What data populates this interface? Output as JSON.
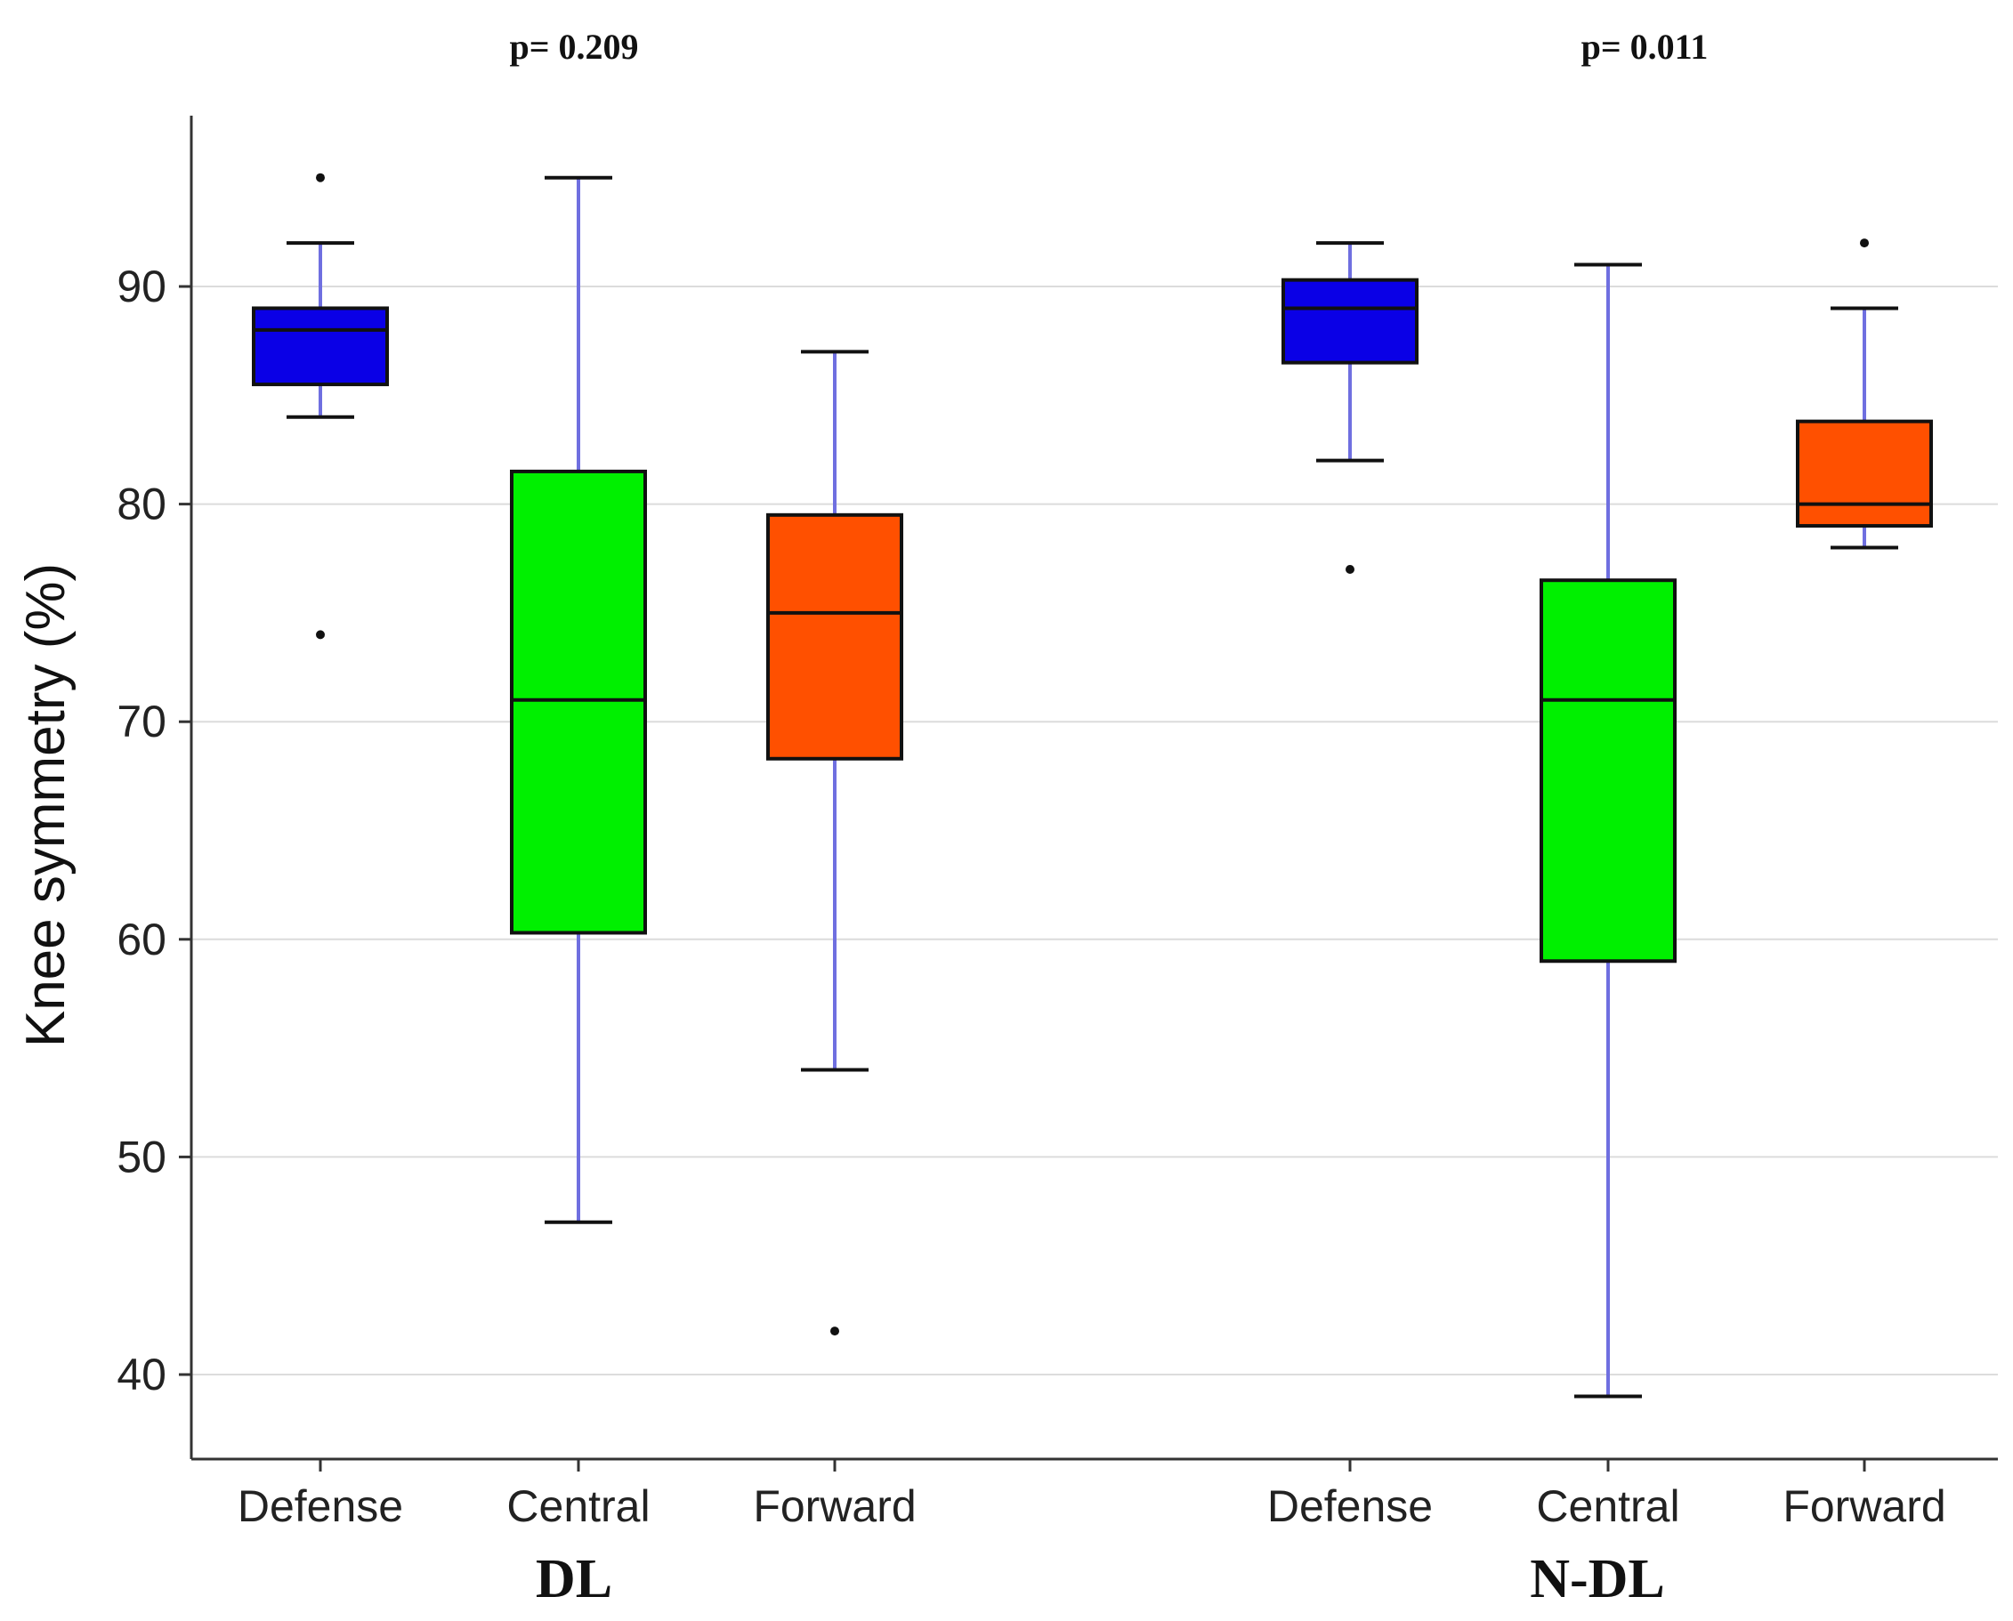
{
  "chart_data": {
    "type": "box",
    "title": "",
    "xlabel": "",
    "ylabel": "Knee symmetry (%)",
    "ylim": [
      36,
      98
    ],
    "yticks": [
      40,
      50,
      60,
      70,
      80,
      90
    ],
    "grid": true,
    "colors": {
      "Defense": "#0a00e6",
      "Central": "#00f000",
      "Forward": "#ff5000",
      "whisker": "#6f6fe0",
      "grid": "#dcdcdc"
    },
    "groups": [
      {
        "label": "DL",
        "p_value": "p= 0.209",
        "boxes": [
          {
            "category": "Defense",
            "min": 84,
            "q1": 85.5,
            "median": 88,
            "q3": 89,
            "max": 92,
            "outliers": [
              95,
              74
            ]
          },
          {
            "category": "Central",
            "min": 47,
            "q1": 60.3,
            "median": 71,
            "q3": 81.5,
            "max": 95,
            "outliers": []
          },
          {
            "category": "Forward",
            "min": 54,
            "q1": 68.3,
            "median": 75,
            "q3": 79.5,
            "max": 87,
            "outliers": [
              42
            ]
          }
        ]
      },
      {
        "label": "N-DL",
        "p_value": "p= 0.011",
        "boxes": [
          {
            "category": "Defense",
            "min": 82,
            "q1": 86.5,
            "median": 89,
            "q3": 90.3,
            "max": 92,
            "outliers": [
              77
            ]
          },
          {
            "category": "Central",
            "min": 39,
            "q1": 59,
            "median": 71,
            "q3": 76.5,
            "max": 91,
            "outliers": []
          },
          {
            "category": "Forward",
            "min": 78,
            "q1": 79,
            "median": 80,
            "q3": 83.8,
            "max": 89,
            "outliers": [
              92
            ]
          }
        ]
      }
    ]
  }
}
